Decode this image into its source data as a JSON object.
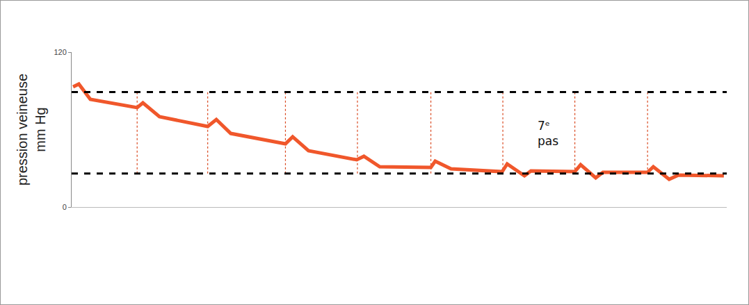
{
  "chart_data": {
    "type": "line",
    "y_label": [
      "pression veineuse",
      "mm Hg"
    ],
    "x": [
      0.02,
      0.1,
      0.26,
      0.91,
      0.99,
      1.22,
      1.89,
      2.01,
      2.21,
      2.97,
      3.07,
      3.29,
      3.96,
      4.06,
      4.28,
      4.99,
      5.05,
      5.27,
      5.98,
      6.05,
      6.29,
      6.38,
      6.99,
      7.07,
      7.28,
      7.38,
      8.0,
      8.08,
      8.3,
      8.43,
      9.06
    ],
    "values": [
      93.1,
      95.3,
      83.4,
      77.0,
      80.7,
      70.0,
      62.4,
      67.8,
      57.0,
      49.0,
      54.4,
      43.6,
      36.6,
      39.3,
      31.2,
      30.7,
      35.5,
      29.6,
      27.4,
      33.4,
      24.2,
      28.0,
      27.4,
      32.8,
      22.6,
      26.9,
      26.9,
      31.2,
      21.5,
      24.8,
      24.2
    ],
    "color": "#f0572b",
    "xlim": [
      0,
      9.1
    ],
    "xticks": [],
    "ylim": [
      0,
      120
    ],
    "yticks": [
      0,
      120
    ],
    "tick_labels": "y",
    "grid": false,
    "hlines": [
      89,
      26
    ],
    "vlines": [
      0.91,
      1.89,
      2.97,
      3.97,
      4.99,
      5.99,
      6.99,
      8.0
    ],
    "annotations": [
      {
        "text": "7ᵉ pas",
        "x": 6.45,
        "y": 57
      }
    ]
  }
}
